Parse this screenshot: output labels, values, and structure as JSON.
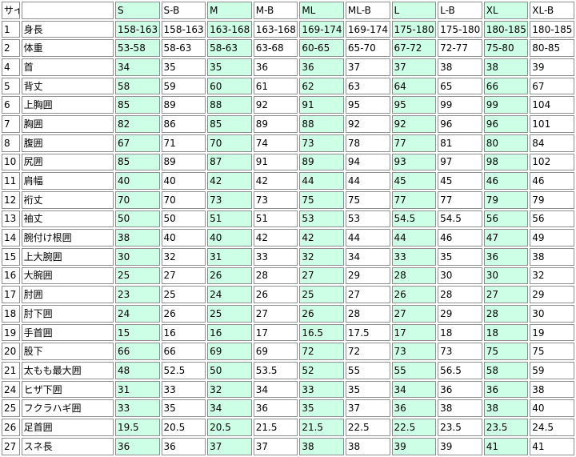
{
  "colors": {
    "highlight_column_bg": "#ccffe6",
    "cell_border": "#8e8e8e"
  },
  "header": [
    "サイズ",
    "",
    "S",
    "S-B",
    "M",
    "M-B",
    "ML",
    "ML-B",
    "L",
    "L-B",
    "XL",
    "XL-B"
  ],
  "rows": [
    [
      "1",
      "身長",
      "158-163",
      "158-163",
      "163-168",
      "163-168",
      "169-174",
      "169-174",
      "175-180",
      "175-180",
      "180-185",
      "180-185"
    ],
    [
      "2",
      "体重",
      "53-58",
      "58-63",
      "58-63",
      "63-68",
      "60-65",
      "65-70",
      "67-72",
      "72-77",
      "75-80",
      "80-85"
    ],
    [
      "4",
      "首",
      "34",
      "35",
      "35",
      "36",
      "36",
      "37",
      "37",
      "38",
      "38",
      "39"
    ],
    [
      "5",
      "背丈",
      "58",
      "59",
      "60",
      "61",
      "62",
      "63",
      "64",
      "65",
      "66",
      "67"
    ],
    [
      "6",
      "上胸囲",
      "85",
      "89",
      "88",
      "92",
      "91",
      "95",
      "95",
      "99",
      "99",
      "104"
    ],
    [
      "7",
      "胸囲",
      "82",
      "86",
      "85",
      "89",
      "88",
      "92",
      "92",
      "96",
      "96",
      "101"
    ],
    [
      "8",
      "腹囲",
      "67",
      "71",
      "70",
      "74",
      "73",
      "78",
      "77",
      "81",
      "80",
      "84"
    ],
    [
      "10",
      "尻囲",
      "85",
      "89",
      "87",
      "91",
      "89",
      "94",
      "93",
      "97",
      "98",
      "102"
    ],
    [
      "11",
      "肩幅",
      "40",
      "40",
      "42",
      "42",
      "44",
      "44",
      "45",
      "45",
      "46",
      "46"
    ],
    [
      "12",
      "裄丈",
      "70",
      "70",
      "73",
      "73",
      "75",
      "75",
      "77",
      "77",
      "79",
      "79"
    ],
    [
      "13",
      "袖丈",
      "50",
      "50",
      "51",
      "51",
      "53",
      "53",
      "54.5",
      "54.5",
      "56",
      "56"
    ],
    [
      "14",
      "腕付け根囲",
      "38",
      "40",
      "40",
      "42",
      "42",
      "44",
      "44",
      "46",
      "47",
      "49"
    ],
    [
      "15",
      "上大腕囲",
      "30",
      "32",
      "31",
      "33",
      "32",
      "34",
      "33",
      "35",
      "36",
      "38"
    ],
    [
      "16",
      "大腕囲",
      "25",
      "27",
      "26",
      "28",
      "27",
      "29",
      "28",
      "30",
      "30",
      "32"
    ],
    [
      "17",
      "肘囲",
      "23",
      "25",
      "24",
      "26",
      "25",
      "27",
      "26",
      "28",
      "27",
      "29"
    ],
    [
      "18",
      "肘下囲",
      "24",
      "26",
      "25",
      "27",
      "26",
      "28",
      "27",
      "29",
      "28",
      "30"
    ],
    [
      "19",
      "手首囲",
      "15",
      "16",
      "16",
      "17",
      "16.5",
      "17.5",
      "17",
      "18",
      "18",
      "19"
    ],
    [
      "20",
      "股下",
      "66",
      "66",
      "69",
      "69",
      "72",
      "72",
      "73",
      "73",
      "75",
      "75"
    ],
    [
      "21",
      "太もも最大囲",
      "48",
      "52.5",
      "50",
      "53.5",
      "52",
      "55",
      "55",
      "56.5",
      "58",
      "59"
    ],
    [
      "24",
      "ヒザ下囲",
      "31",
      "33",
      "32",
      "34",
      "33",
      "35",
      "34",
      "36",
      "36",
      "38"
    ],
    [
      "25",
      "フクラハギ囲",
      "33",
      "35",
      "34",
      "36",
      "35",
      "37",
      "36",
      "38",
      "38",
      "40"
    ],
    [
      "26",
      "足首囲",
      "19.5",
      "20.5",
      "20.5",
      "21.5",
      "21.5",
      "22.5",
      "22.5",
      "23.5",
      "23.5",
      "24.5"
    ],
    [
      "27",
      "スネ長",
      "36",
      "36",
      "37",
      "37",
      "38",
      "38",
      "39",
      "39",
      "41",
      "41"
    ]
  ]
}
